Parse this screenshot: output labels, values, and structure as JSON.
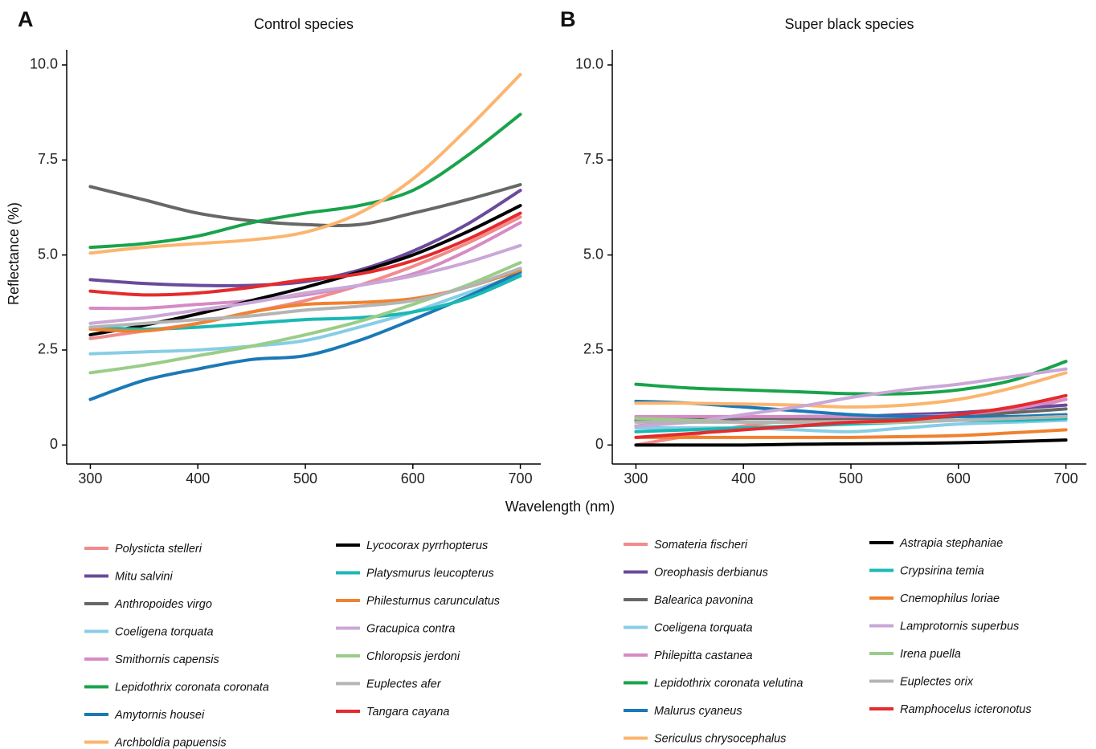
{
  "xlabel": "Wavelength (nm)",
  "ylabel": "Reflectance (%)",
  "chart_data": [
    {
      "type": "line",
      "panel_label": "A",
      "title": "Control species",
      "x": [
        300,
        350,
        400,
        450,
        500,
        550,
        600,
        650,
        700
      ],
      "xlim": [
        278,
        719
      ],
      "ylim": [
        -0.5,
        10.4
      ],
      "xticks": [
        300,
        400,
        500,
        600,
        700
      ],
      "yticks": [
        0,
        2.5,
        {
          "value": 5,
          "label": "5.0"
        },
        {
          "value": 7.5,
          "label": "7.5"
        },
        {
          "value": 10,
          "label": "10.0"
        }
      ],
      "series": [
        {
          "name": "Polysticta stelleri",
          "color": "#f28b8c",
          "values": [
            2.8,
            3.0,
            3.2,
            3.5,
            3.8,
            4.2,
            4.7,
            5.3,
            6.0
          ]
        },
        {
          "name": "Mitu salvini",
          "color": "#6a4a9c",
          "values": [
            4.35,
            4.25,
            4.2,
            4.2,
            4.3,
            4.6,
            5.1,
            5.8,
            6.7
          ]
        },
        {
          "name": "Anthropoides virgo",
          "color": "#666866",
          "values": [
            6.8,
            6.45,
            6.1,
            5.9,
            5.8,
            5.8,
            6.1,
            6.45,
            6.85
          ]
        },
        {
          "name": "Coeligena torquata",
          "color": "#88cde6",
          "values": [
            2.4,
            2.45,
            2.5,
            2.6,
            2.75,
            3.1,
            3.5,
            4.0,
            4.5
          ]
        },
        {
          "name": "Smithornis capensis",
          "color": "#d68bc4",
          "values": [
            3.6,
            3.6,
            3.7,
            3.8,
            3.95,
            4.2,
            4.5,
            5.1,
            5.85
          ]
        },
        {
          "name": "Lepidothrix coronata coronata",
          "color": "#19a34b",
          "values": [
            5.2,
            5.3,
            5.5,
            5.85,
            6.1,
            6.3,
            6.7,
            7.6,
            8.7
          ]
        },
        {
          "name": "Amytornis housei",
          "color": "#1b79b6",
          "values": [
            1.2,
            1.7,
            2.0,
            2.25,
            2.35,
            2.75,
            3.3,
            3.9,
            4.55
          ]
        },
        {
          "name": "Archboldia papuensis",
          "color": "#fbb56e",
          "values": [
            5.05,
            5.2,
            5.3,
            5.4,
            5.6,
            6.1,
            7.0,
            8.3,
            9.75
          ]
        },
        {
          "name": "Lycocorax pyrrhopterus",
          "color": "#000000",
          "values": [
            2.9,
            3.15,
            3.45,
            3.8,
            4.15,
            4.55,
            5.0,
            5.6,
            6.3
          ]
        },
        {
          "name": "Platysmurus leucopterus",
          "color": "#1ab8b4",
          "values": [
            3.1,
            3.05,
            3.1,
            3.2,
            3.3,
            3.35,
            3.5,
            3.85,
            4.45
          ]
        },
        {
          "name": "Philesturnus carunculatus",
          "color": "#f0812f",
          "values": [
            3.05,
            3.0,
            3.2,
            3.5,
            3.7,
            3.75,
            3.85,
            4.15,
            4.6
          ]
        },
        {
          "name": "Gracupica contra",
          "color": "#caa7d7",
          "values": [
            3.2,
            3.35,
            3.55,
            3.75,
            4.0,
            4.2,
            4.45,
            4.8,
            5.25
          ]
        },
        {
          "name": "Chloropsis jerdoni",
          "color": "#9acd87",
          "values": [
            1.9,
            2.1,
            2.35,
            2.6,
            2.9,
            3.25,
            3.7,
            4.2,
            4.8
          ]
        },
        {
          "name": "Euplectes afer",
          "color": "#b4b4b4",
          "values": [
            3.1,
            3.2,
            3.3,
            3.4,
            3.55,
            3.65,
            3.8,
            4.15,
            4.65
          ]
        },
        {
          "name": "Tangara cayana",
          "color": "#e42b2d",
          "values": [
            4.05,
            3.95,
            4.0,
            4.15,
            4.35,
            4.5,
            4.85,
            5.4,
            6.1
          ]
        }
      ]
    },
    {
      "type": "line",
      "panel_label": "B",
      "title": "Super black species",
      "x": [
        300,
        350,
        400,
        450,
        500,
        550,
        600,
        650,
        700
      ],
      "xlim": [
        278,
        719
      ],
      "ylim": [
        -0.5,
        10.4
      ],
      "xticks": [
        300,
        400,
        500,
        600,
        700
      ],
      "yticks": [
        0,
        2.5,
        {
          "value": 5,
          "label": "5.0"
        },
        {
          "value": 7.5,
          "label": "7.5"
        },
        {
          "value": 10,
          "label": "10.0"
        }
      ],
      "series": [
        {
          "name": "Somateria fischeri",
          "color": "#f28b8c",
          "values": [
            0.0,
            0.25,
            0.5,
            0.65,
            0.7,
            0.75,
            0.8,
            0.9,
            1.2
          ]
        },
        {
          "name": "Oreophasis derbianus",
          "color": "#6a4a9c",
          "values": [
            0.5,
            0.6,
            0.7,
            0.75,
            0.75,
            0.8,
            0.85,
            0.95,
            1.05
          ]
        },
        {
          "name": "Balearica pavonina",
          "color": "#666866",
          "values": [
            0.65,
            0.7,
            0.7,
            0.7,
            0.7,
            0.7,
            0.75,
            0.85,
            0.95
          ]
        },
        {
          "name": "Coeligena torquata",
          "color": "#88cde6",
          "values": [
            0.45,
            0.45,
            0.45,
            0.4,
            0.35,
            0.45,
            0.55,
            0.6,
            0.65
          ]
        },
        {
          "name": "Philepitta castanea",
          "color": "#d68bc4",
          "values": [
            0.75,
            0.75,
            0.75,
            0.75,
            0.75,
            0.75,
            0.8,
            0.95,
            1.2
          ]
        },
        {
          "name": "Lepidothrix coronata velutina",
          "color": "#19a34b",
          "values": [
            1.6,
            1.5,
            1.45,
            1.4,
            1.35,
            1.35,
            1.45,
            1.7,
            2.2
          ]
        },
        {
          "name": "Malurus cyaneus",
          "color": "#1b79b6",
          "values": [
            1.15,
            1.1,
            1.0,
            0.9,
            0.8,
            0.75,
            0.75,
            0.75,
            0.8
          ]
        },
        {
          "name": "Sericulus chrysocephalus",
          "color": "#fbb56e",
          "values": [
            1.1,
            1.1,
            1.08,
            1.05,
            1.0,
            1.05,
            1.2,
            1.5,
            1.9
          ]
        },
        {
          "name": "Astrapia stephaniae",
          "color": "#000000",
          "values": [
            0.0,
            0.0,
            0.0,
            0.02,
            0.03,
            0.04,
            0.06,
            0.09,
            0.13
          ]
        },
        {
          "name": "Crypsirina temia",
          "color": "#1ab8b4",
          "values": [
            0.35,
            0.4,
            0.45,
            0.5,
            0.55,
            0.6,
            0.65,
            0.65,
            0.7
          ]
        },
        {
          "name": "Cnemophilus loriae",
          "color": "#f0812f",
          "values": [
            0.2,
            0.2,
            0.2,
            0.2,
            0.2,
            0.22,
            0.25,
            0.32,
            0.4
          ]
        },
        {
          "name": "Lamprotornis superbus",
          "color": "#caa7d7",
          "values": [
            0.5,
            0.6,
            0.8,
            1.0,
            1.25,
            1.45,
            1.6,
            1.8,
            2.0
          ]
        },
        {
          "name": "Irena puella",
          "color": "#9acd87",
          "values": [
            0.7,
            0.65,
            0.6,
            0.6,
            0.6,
            0.6,
            0.65,
            0.7,
            0.75
          ]
        },
        {
          "name": "Euplectes orix",
          "color": "#b4b4b4",
          "values": [
            0.6,
            0.6,
            0.6,
            0.6,
            0.6,
            0.62,
            0.65,
            0.7,
            0.75
          ]
        },
        {
          "name": "Ramphocelus icteronotus",
          "color": "#e42b2d",
          "values": [
            0.2,
            0.3,
            0.4,
            0.5,
            0.6,
            0.65,
            0.8,
            1.0,
            1.3
          ]
        }
      ]
    }
  ]
}
